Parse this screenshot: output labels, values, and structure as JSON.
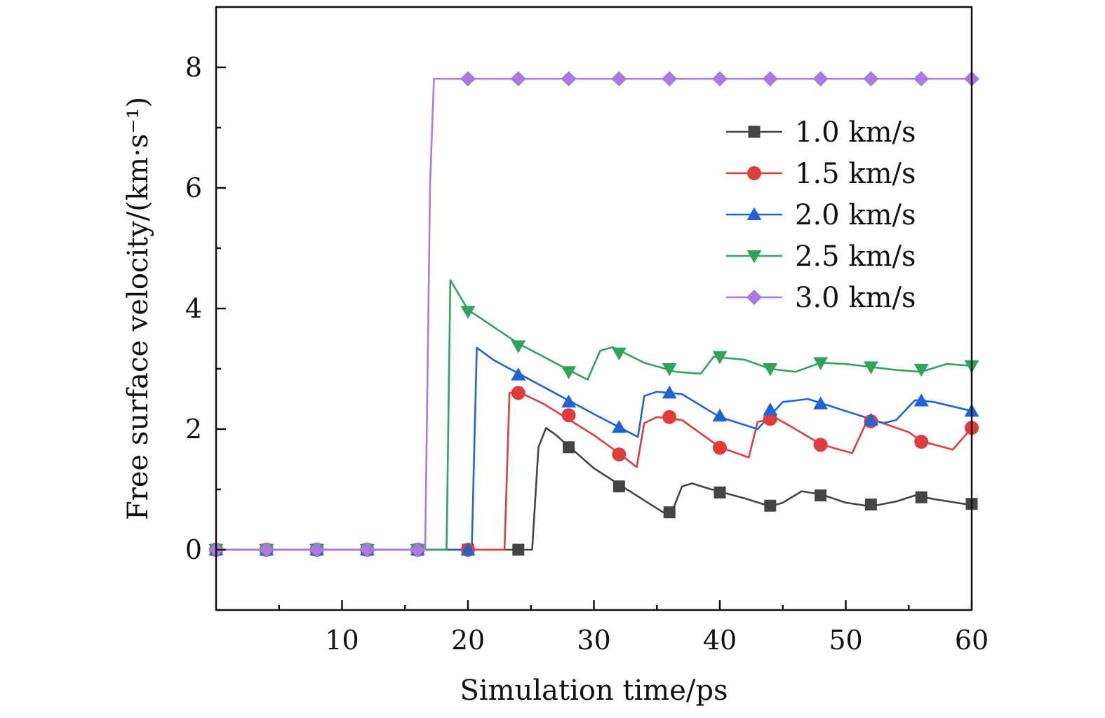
{
  "chart_data": {
    "type": "line",
    "title": "",
    "xlabel": "Simulation time/ps",
    "ylabel": "Free surface velocity/(km·s⁻¹)",
    "xlim": [
      0,
      60
    ],
    "ylim": [
      -1,
      9
    ],
    "xticks": [
      10,
      20,
      30,
      40,
      50,
      60
    ],
    "yticks": [
      0,
      2,
      4,
      6,
      8
    ],
    "grid": false,
    "legend_position": "top-right",
    "series": [
      {
        "name": "1.0 km/s",
        "color": "#444444",
        "marker": "square",
        "line": [
          [
            0,
            0
          ],
          [
            25.1,
            0
          ],
          [
            25.6,
            1.7
          ],
          [
            26.2,
            2.02
          ],
          [
            27,
            1.9
          ],
          [
            30,
            1.35
          ],
          [
            33,
            0.95
          ],
          [
            35.5,
            0.62
          ],
          [
            36.3,
            0.68
          ],
          [
            37,
            1.05
          ],
          [
            37.8,
            1.1
          ],
          [
            39,
            1.02
          ],
          [
            42,
            0.85
          ],
          [
            44,
            0.72
          ],
          [
            45,
            0.78
          ],
          [
            46.5,
            0.97
          ],
          [
            48,
            0.92
          ],
          [
            50,
            0.78
          ],
          [
            52,
            0.72
          ],
          [
            54,
            0.8
          ],
          [
            55.5,
            0.9
          ],
          [
            57,
            0.84
          ],
          [
            60,
            0.74
          ]
        ],
        "markers": [
          [
            0,
            0
          ],
          [
            4,
            0
          ],
          [
            8,
            0
          ],
          [
            12,
            0
          ],
          [
            16,
            0
          ],
          [
            20,
            0
          ],
          [
            24,
            0
          ],
          [
            28,
            1.7
          ],
          [
            32,
            1.05
          ],
          [
            36,
            0.62
          ],
          [
            40,
            0.95
          ],
          [
            44,
            0.73
          ],
          [
            48,
            0.9
          ],
          [
            52,
            0.75
          ],
          [
            56,
            0.87
          ],
          [
            60,
            0.76
          ]
        ]
      },
      {
        "name": "1.5 km/s",
        "color": "#e03c3c",
        "marker": "circle",
        "line": [
          [
            0,
            0
          ],
          [
            22.9,
            0
          ],
          [
            23.3,
            2.6
          ],
          [
            24,
            2.62
          ],
          [
            26,
            2.42
          ],
          [
            30,
            1.9
          ],
          [
            32,
            1.6
          ],
          [
            33.4,
            1.37
          ],
          [
            34,
            2.1
          ],
          [
            35,
            2.2
          ],
          [
            37,
            2.15
          ],
          [
            40,
            1.7
          ],
          [
            42.3,
            1.53
          ],
          [
            43,
            2.12
          ],
          [
            44.5,
            2.18
          ],
          [
            46,
            2.0
          ],
          [
            48,
            1.75
          ],
          [
            50.5,
            1.6
          ],
          [
            51.5,
            2.05
          ],
          [
            52.5,
            2.13
          ],
          [
            55,
            1.95
          ],
          [
            56,
            1.8
          ],
          [
            58.5,
            1.66
          ],
          [
            60,
            2.02
          ]
        ],
        "markers": [
          [
            0,
            0
          ],
          [
            4,
            0
          ],
          [
            8,
            0
          ],
          [
            12,
            0
          ],
          [
            16,
            0
          ],
          [
            20,
            0
          ],
          [
            24,
            2.6
          ],
          [
            28,
            2.23
          ],
          [
            32,
            1.58
          ],
          [
            36,
            2.2
          ],
          [
            40,
            1.69
          ],
          [
            44,
            2.17
          ],
          [
            48,
            1.74
          ],
          [
            52,
            2.13
          ],
          [
            56,
            1.79
          ],
          [
            60,
            2.02
          ]
        ]
      },
      {
        "name": "2.0 km/s",
        "color": "#1f63d8",
        "marker": "triangle-up",
        "line": [
          [
            0,
            0
          ],
          [
            20.3,
            0
          ],
          [
            20.7,
            3.35
          ],
          [
            22,
            3.15
          ],
          [
            26,
            2.7
          ],
          [
            30,
            2.25
          ],
          [
            33.5,
            1.87
          ],
          [
            34,
            2.55
          ],
          [
            35,
            2.62
          ],
          [
            37,
            2.58
          ],
          [
            40,
            2.2
          ],
          [
            43,
            2.0
          ],
          [
            45,
            2.45
          ],
          [
            47,
            2.5
          ],
          [
            50,
            2.3
          ],
          [
            53,
            2.1
          ],
          [
            54,
            2.15
          ],
          [
            55.5,
            2.48
          ],
          [
            57,
            2.45
          ],
          [
            60,
            2.3
          ]
        ],
        "markers": [
          [
            0,
            0
          ],
          [
            4,
            0
          ],
          [
            8,
            0
          ],
          [
            12,
            0
          ],
          [
            16,
            0
          ],
          [
            20,
            0
          ],
          [
            24,
            2.9
          ],
          [
            28,
            2.45
          ],
          [
            32,
            2.03
          ],
          [
            36,
            2.6
          ],
          [
            40,
            2.22
          ],
          [
            44,
            2.32
          ],
          [
            48,
            2.42
          ],
          [
            52,
            2.15
          ],
          [
            56,
            2.47
          ],
          [
            60,
            2.3
          ]
        ]
      },
      {
        "name": "2.5 km/s",
        "color": "#30a35c",
        "marker": "triangle-down",
        "line": [
          [
            0,
            0
          ],
          [
            18.3,
            0
          ],
          [
            18.6,
            4.47
          ],
          [
            20,
            3.98
          ],
          [
            24,
            3.42
          ],
          [
            28,
            2.98
          ],
          [
            29.5,
            2.82
          ],
          [
            30.5,
            3.3
          ],
          [
            31.5,
            3.36
          ],
          [
            34,
            3.1
          ],
          [
            36.5,
            2.95
          ],
          [
            38.5,
            2.92
          ],
          [
            39.5,
            3.2
          ],
          [
            42,
            3.15
          ],
          [
            44,
            3.0
          ],
          [
            46,
            2.95
          ],
          [
            48,
            3.1
          ],
          [
            50,
            3.08
          ],
          [
            54,
            2.98
          ],
          [
            56,
            2.95
          ],
          [
            58,
            3.08
          ],
          [
            60,
            3.05
          ]
        ],
        "markers": [
          [
            0,
            0
          ],
          [
            4,
            0
          ],
          [
            8,
            0
          ],
          [
            12,
            0
          ],
          [
            16,
            0
          ],
          [
            20,
            3.95
          ],
          [
            24,
            3.38
          ],
          [
            28,
            2.95
          ],
          [
            32,
            3.26
          ],
          [
            36,
            3.0
          ],
          [
            40,
            3.2
          ],
          [
            44,
            3.0
          ],
          [
            48,
            3.1
          ],
          [
            52,
            3.03
          ],
          [
            56,
            2.99
          ],
          [
            60,
            3.05
          ]
        ]
      },
      {
        "name": "3.0 km/s",
        "color": "#a77be0",
        "marker": "diamond",
        "line": [
          [
            0,
            0
          ],
          [
            16.6,
            0
          ],
          [
            17.0,
            6.1
          ],
          [
            17.3,
            7.81
          ],
          [
            60,
            7.81
          ]
        ],
        "markers": [
          [
            0,
            0
          ],
          [
            4,
            0
          ],
          [
            8,
            0
          ],
          [
            12,
            0
          ],
          [
            16,
            0
          ],
          [
            20,
            7.81
          ],
          [
            24,
            7.81
          ],
          [
            28,
            7.81
          ],
          [
            32,
            7.81
          ],
          [
            36,
            7.81
          ],
          [
            40,
            7.81
          ],
          [
            44,
            7.81
          ],
          [
            48,
            7.81
          ],
          [
            52,
            7.81
          ],
          [
            56,
            7.81
          ],
          [
            60,
            7.81
          ]
        ]
      }
    ]
  }
}
